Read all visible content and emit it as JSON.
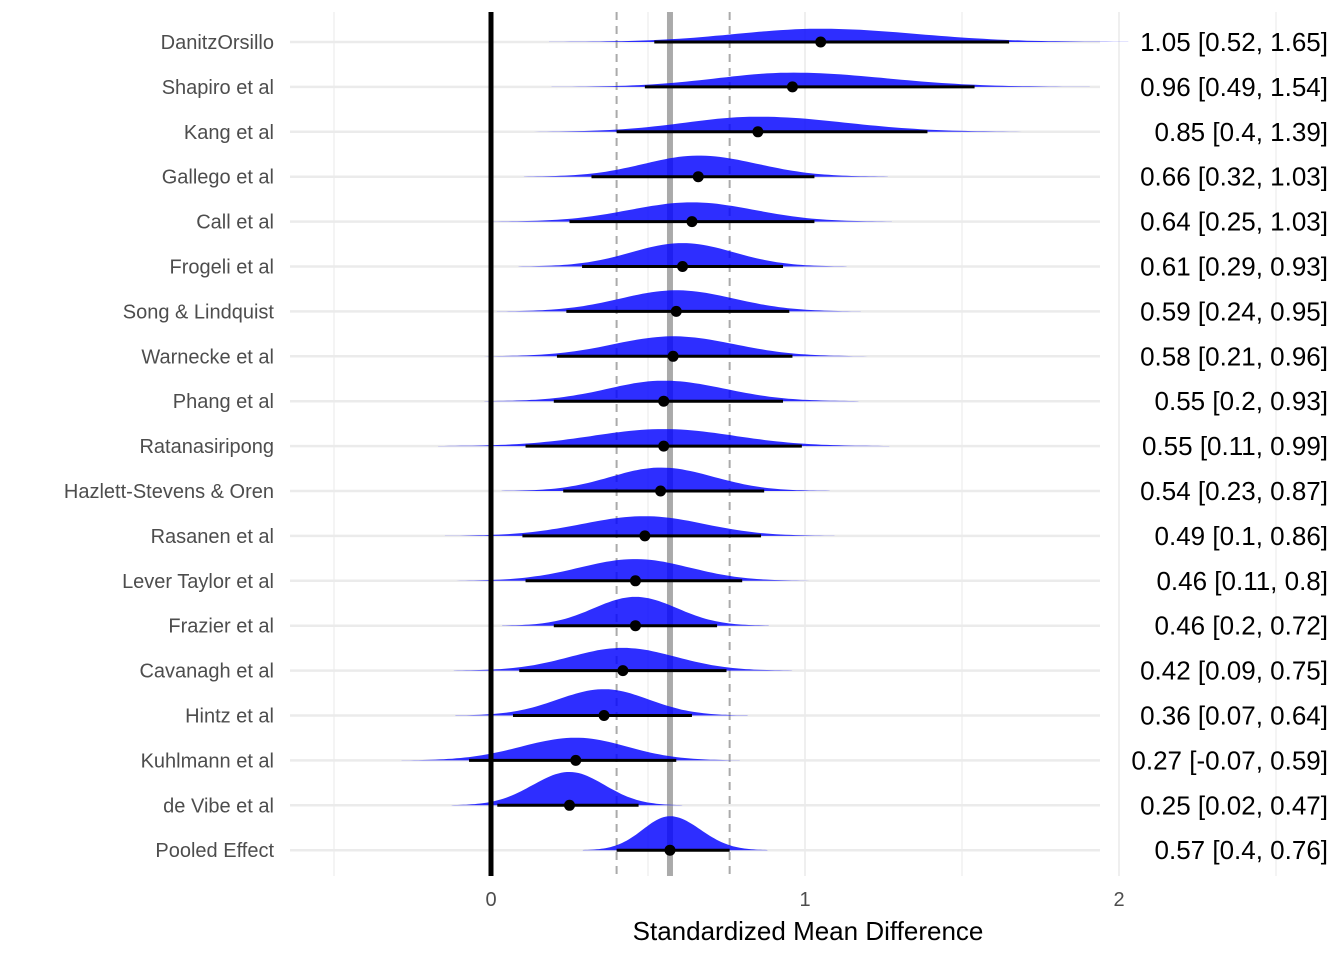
{
  "chart_data": {
    "type": "forest",
    "xlabel": "Standardized Mean Difference",
    "xlim": [
      -0.5,
      2.5
    ],
    "xticks": [
      0,
      1,
      2
    ],
    "grid": true,
    "reference_line": 0,
    "pooled": {
      "estimate": 0.57,
      "lower": 0.4,
      "upper": 0.76
    },
    "density_color": "#0000FF",
    "studies": [
      {
        "name": "DanitzOrsillo",
        "estimate": 1.05,
        "lower": 0.52,
        "upper": 1.65,
        "label": "1.05 [0.52, 1.65]"
      },
      {
        "name": "Shapiro et al",
        "estimate": 0.96,
        "lower": 0.49,
        "upper": 1.54,
        "label": "0.96 [0.49, 1.54]"
      },
      {
        "name": "Kang et al",
        "estimate": 0.85,
        "lower": 0.4,
        "upper": 1.39,
        "label": "0.85 [0.4, 1.39]"
      },
      {
        "name": "Gallego et al",
        "estimate": 0.66,
        "lower": 0.32,
        "upper": 1.03,
        "label": "0.66 [0.32, 1.03]"
      },
      {
        "name": "Call et al",
        "estimate": 0.64,
        "lower": 0.25,
        "upper": 1.03,
        "label": "0.64 [0.25, 1.03]"
      },
      {
        "name": "Frogeli et al",
        "estimate": 0.61,
        "lower": 0.29,
        "upper": 0.93,
        "label": "0.61 [0.29, 0.93]"
      },
      {
        "name": "Song & Lindquist",
        "estimate": 0.59,
        "lower": 0.24,
        "upper": 0.95,
        "label": "0.59 [0.24, 0.95]"
      },
      {
        "name": "Warnecke et al",
        "estimate": 0.58,
        "lower": 0.21,
        "upper": 0.96,
        "label": "0.58 [0.21, 0.96]"
      },
      {
        "name": "Phang et al",
        "estimate": 0.55,
        "lower": 0.2,
        "upper": 0.93,
        "label": "0.55 [0.2, 0.93]"
      },
      {
        "name": "Ratanasiripong",
        "estimate": 0.55,
        "lower": 0.11,
        "upper": 0.99,
        "label": "0.55 [0.11, 0.99]"
      },
      {
        "name": "Hazlett-Stevens & Oren",
        "estimate": 0.54,
        "lower": 0.23,
        "upper": 0.87,
        "label": "0.54 [0.23, 0.87]"
      },
      {
        "name": "Rasanen et al",
        "estimate": 0.49,
        "lower": 0.1,
        "upper": 0.86,
        "label": "0.49 [0.1, 0.86]"
      },
      {
        "name": "Lever Taylor et al",
        "estimate": 0.46,
        "lower": 0.11,
        "upper": 0.8,
        "label": "0.46 [0.11, 0.8]"
      },
      {
        "name": "Frazier et al",
        "estimate": 0.46,
        "lower": 0.2,
        "upper": 0.72,
        "label": "0.46 [0.2, 0.72]"
      },
      {
        "name": "Cavanagh et al",
        "estimate": 0.42,
        "lower": 0.09,
        "upper": 0.75,
        "label": "0.42 [0.09, 0.75]"
      },
      {
        "name": "Hintz et al",
        "estimate": 0.36,
        "lower": 0.07,
        "upper": 0.64,
        "label": "0.36 [0.07, 0.64]"
      },
      {
        "name": "Kuhlmann et al",
        "estimate": 0.27,
        "lower": -0.07,
        "upper": 0.59,
        "label": "0.27 [-0.07, 0.59]"
      },
      {
        "name": "de Vibe et al",
        "estimate": 0.25,
        "lower": 0.02,
        "upper": 0.47,
        "label": "0.25 [0.02, 0.47]"
      },
      {
        "name": "Pooled Effect",
        "estimate": 0.57,
        "lower": 0.4,
        "upper": 0.76,
        "label": "0.57 [0.4, 0.76]"
      }
    ]
  }
}
